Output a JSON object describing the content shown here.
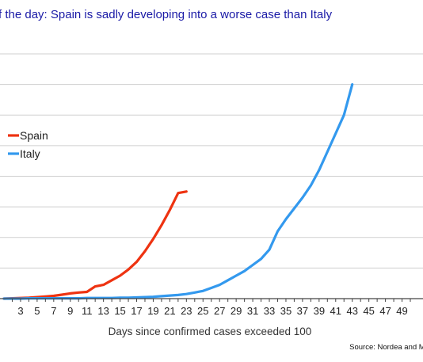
{
  "title": "f the day: Spain is sadly developing into a worse case than Italy",
  "source": "Source: Nordea and Ma",
  "chart_data": {
    "type": "line",
    "title": "f the day: Spain is sadly developing into a worse case than Italy",
    "xlabel": "Days since confirmed cases exceeded 100",
    "ylabel": "",
    "x_tick_labels": [
      "3",
      "5",
      "7",
      "9",
      "11",
      "13",
      "15",
      "17",
      "19",
      "21",
      "23",
      "25",
      "27",
      "29",
      "31",
      "33",
      "35",
      "37",
      "39",
      "41",
      "43",
      "45",
      "47",
      "49"
    ],
    "xlim": [
      1,
      50
    ],
    "ylim": [
      0,
      8
    ],
    "y_tick_labels": [],
    "grid": "horizontal",
    "legend_position": "left",
    "series": [
      {
        "name": "Spain",
        "color": "#ee3311",
        "x": [
          1,
          2,
          3,
          4,
          5,
          6,
          7,
          8,
          9,
          10,
          11,
          12,
          13,
          14,
          15,
          16,
          17,
          18,
          19,
          20,
          21,
          22,
          23
        ],
        "y": [
          0.0,
          0.01,
          0.02,
          0.03,
          0.05,
          0.07,
          0.09,
          0.13,
          0.17,
          0.2,
          0.22,
          0.4,
          0.45,
          0.6,
          0.75,
          0.95,
          1.2,
          1.55,
          1.95,
          2.4,
          2.9,
          3.45,
          3.5
        ]
      },
      {
        "name": "Italy",
        "color": "#3399ee",
        "x": [
          1,
          2,
          3,
          4,
          5,
          6,
          7,
          8,
          9,
          10,
          11,
          12,
          13,
          14,
          15,
          16,
          17,
          18,
          19,
          20,
          21,
          22,
          23,
          24,
          25,
          26,
          27,
          28,
          29,
          30,
          31,
          32,
          33,
          34,
          35,
          36,
          37,
          38,
          39,
          40,
          41,
          42,
          43
        ],
        "y": [
          0.0,
          0.0,
          0.0,
          0.01,
          0.01,
          0.01,
          0.01,
          0.01,
          0.01,
          0.01,
          0.02,
          0.02,
          0.02,
          0.02,
          0.03,
          0.03,
          0.04,
          0.05,
          0.06,
          0.08,
          0.1,
          0.12,
          0.15,
          0.2,
          0.25,
          0.35,
          0.45,
          0.6,
          0.75,
          0.9,
          1.1,
          1.3,
          1.6,
          2.2,
          2.6,
          2.95,
          3.3,
          3.7,
          4.2,
          4.8,
          5.4,
          6.0,
          7.0
        ]
      }
    ]
  }
}
